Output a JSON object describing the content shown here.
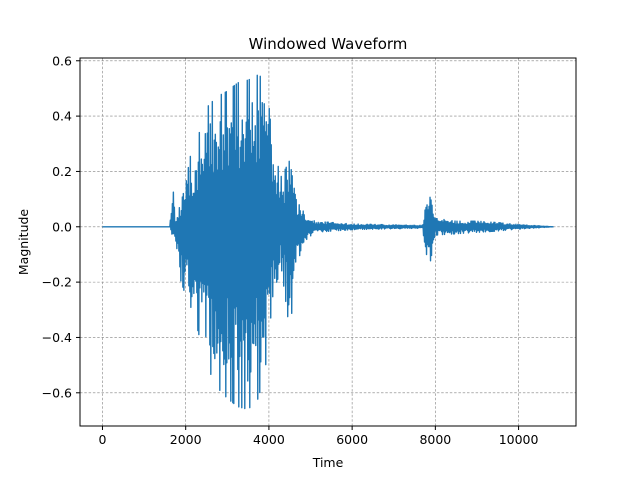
{
  "chart_data": {
    "type": "line",
    "title": "Windowed Waveform",
    "xlabel": "Time",
    "ylabel": "Magnitude",
    "xlim": [
      -540,
      11380
    ],
    "ylim": [
      -0.72,
      0.61
    ],
    "xticks": [
      0,
      2000,
      4000,
      6000,
      8000,
      10000
    ],
    "xtick_labels": [
      "0",
      "2000",
      "4000",
      "6000",
      "8000",
      "10000"
    ],
    "yticks": [
      -0.6,
      -0.4,
      -0.2,
      0.0,
      0.2,
      0.4,
      0.6
    ],
    "ytick_labels": [
      "−0.6",
      "−0.4",
      "−0.2",
      "0.0",
      "0.2",
      "0.4",
      "0.6"
    ],
    "grid": true,
    "grid_style": "dashed",
    "line_color": "#1f77b4",
    "series": [
      {
        "x_start": 0,
        "x_end": 10840,
        "envelope": [
          {
            "x": 0,
            "max": 0.0,
            "min": 0.0
          },
          {
            "x": 1620,
            "max": 0.0,
            "min": 0.0
          },
          {
            "x": 1680,
            "max": 0.18,
            "min": -0.05
          },
          {
            "x": 1750,
            "max": 0.02,
            "min": -0.06
          },
          {
            "x": 1850,
            "max": 0.07,
            "min": -0.18
          },
          {
            "x": 2000,
            "max": 0.15,
            "min": -0.25
          },
          {
            "x": 2100,
            "max": 0.25,
            "min": -0.28
          },
          {
            "x": 2250,
            "max": 0.3,
            "min": -0.35
          },
          {
            "x": 2500,
            "max": 0.43,
            "min": -0.5
          },
          {
            "x": 2750,
            "max": 0.47,
            "min": -0.58
          },
          {
            "x": 3000,
            "max": 0.49,
            "min": -0.62
          },
          {
            "x": 3250,
            "max": 0.52,
            "min": -0.65
          },
          {
            "x": 3500,
            "max": 0.53,
            "min": -0.66
          },
          {
            "x": 3750,
            "max": 0.55,
            "min": -0.62
          },
          {
            "x": 3950,
            "max": 0.52,
            "min": -0.48
          },
          {
            "x": 4100,
            "max": 0.28,
            "min": -0.24
          },
          {
            "x": 4300,
            "max": 0.18,
            "min": -0.15
          },
          {
            "x": 4500,
            "max": 0.24,
            "min": -0.38
          },
          {
            "x": 4650,
            "max": 0.1,
            "min": -0.17
          },
          {
            "x": 4800,
            "max": 0.06,
            "min": -0.06
          },
          {
            "x": 5100,
            "max": 0.02,
            "min": -0.02
          },
          {
            "x": 6000,
            "max": 0.01,
            "min": -0.01
          },
          {
            "x": 7700,
            "max": 0.005,
            "min": -0.005
          },
          {
            "x": 7780,
            "max": 0.09,
            "min": -0.14
          },
          {
            "x": 7850,
            "max": 0.16,
            "min": -0.15
          },
          {
            "x": 8000,
            "max": 0.03,
            "min": -0.03
          },
          {
            "x": 8500,
            "max": 0.02,
            "min": -0.025
          },
          {
            "x": 9000,
            "max": 0.02,
            "min": -0.02
          },
          {
            "x": 9500,
            "max": 0.015,
            "min": -0.015
          },
          {
            "x": 10000,
            "max": 0.008,
            "min": -0.008
          },
          {
            "x": 10840,
            "max": 0.0,
            "min": 0.0
          }
        ]
      }
    ]
  }
}
